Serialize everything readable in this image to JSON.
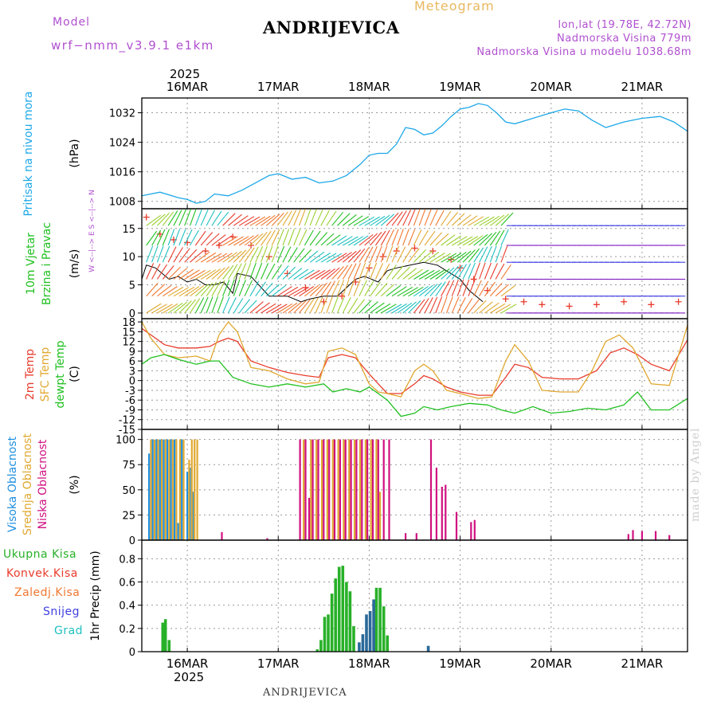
{
  "header": {
    "model_label": "Model",
    "model_name": "wrf−nmm_v3.9.1  e1km",
    "title": "ANDRIJEVICA",
    "meteogram_label": "Meteogram",
    "lonlat": "lon,lat (19.78E, 42.72N)",
    "altitude": "Nadmorska Visina 779m",
    "model_altitude": "Nadmorska Visina u modelu 1038.68m"
  },
  "footer": {
    "station": "ANDRIJEVICA",
    "watermark": "made by Angel"
  },
  "time_axis": {
    "year": "2025",
    "labels": [
      "16MAR",
      "17MAR",
      "18MAR",
      "19MAR",
      "20MAR",
      "21MAR"
    ],
    "start_day": 15.5,
    "end_day": 21.5
  },
  "colors": {
    "pressure": "#1da8e8",
    "temp2m": "#e83c2c",
    "sfc": "#e0a830",
    "dewpt": "#20c020",
    "low_cloud": "#d01080",
    "mid_cloud": "#e0a830",
    "high_cloud": "#2090e0",
    "total_precip": "#28b028",
    "convective": "#e83c2c",
    "frozen": "#f07830",
    "snow": "#4040e0",
    "graupel": "#20c0c0"
  },
  "chart_data": [
    {
      "type": "line",
      "name": "pressure",
      "ylabel_rotated": "Pritisak na nivou mora",
      "unit": "(hPa)",
      "yticks": [
        1008,
        1016,
        1024,
        1032
      ],
      "ylim": [
        1006,
        1036
      ],
      "series": [
        {
          "color": "#1da8e8",
          "x": [
            15.5,
            15.7,
            15.9,
            16.0,
            16.1,
            16.2,
            16.3,
            16.45,
            16.6,
            16.75,
            16.9,
            17.0,
            17.15,
            17.3,
            17.45,
            17.6,
            17.75,
            17.9,
            18.0,
            18.1,
            18.2,
            18.3,
            18.4,
            18.5,
            18.6,
            18.7,
            18.8,
            18.9,
            19.0,
            19.1,
            19.2,
            19.3,
            19.4,
            19.5,
            19.6,
            19.8,
            20.0,
            20.15,
            20.3,
            20.45,
            20.6,
            20.8,
            21.0,
            21.2,
            21.35,
            21.5
          ],
          "y": [
            1009.5,
            1010.5,
            1009,
            1008.5,
            1007.5,
            1008,
            1010,
            1009.5,
            1011,
            1013,
            1015,
            1015.5,
            1014,
            1014.5,
            1013,
            1013.5,
            1015,
            1018,
            1020.5,
            1021,
            1021,
            1023.5,
            1028,
            1027.5,
            1026,
            1026.5,
            1028.5,
            1031,
            1033,
            1033.5,
            1034.5,
            1034,
            1032,
            1029.5,
            1029,
            1030.5,
            1032,
            1033,
            1032.5,
            1030,
            1028,
            1029.5,
            1030.5,
            1031,
            1029.5,
            1027
          ]
        }
      ]
    },
    {
      "type": "line",
      "name": "wind",
      "ylabel_rotated": [
        "10m Vjetar",
        "Brzina i Pravac"
      ],
      "unit": "(m/s)",
      "compass_label": "W <--|--> E   S <--|--> N",
      "yticks": [
        0,
        5,
        10,
        15
      ],
      "ylim": [
        -1,
        18.5
      ],
      "series": [
        {
          "name": "speed",
          "color": "#000000",
          "x": [
            15.5,
            15.55,
            15.65,
            15.8,
            15.9,
            16.0,
            16.1,
            16.2,
            16.3,
            16.4,
            16.5,
            16.55,
            16.7,
            16.9,
            17.1,
            17.25,
            17.35,
            17.5,
            17.65,
            17.75,
            17.85,
            17.95,
            18.1,
            18.2,
            18.3,
            18.45,
            18.6,
            18.75,
            18.9,
            19.0,
            19.1,
            19.25
          ],
          "y": [
            6,
            8.5,
            8,
            6,
            6.5,
            5.5,
            6,
            5,
            5,
            5.5,
            3.5,
            7,
            6.5,
            3,
            3,
            2,
            2.5,
            3,
            3,
            4.5,
            6,
            6.5,
            5.5,
            7.5,
            8,
            8.5,
            9,
            8.5,
            7,
            6,
            4,
            2
          ]
        },
        {
          "name": "gust",
          "color": "#e83c2c",
          "x": [
            15.55,
            15.7,
            15.85,
            16.0,
            16.2,
            16.35,
            16.5,
            16.7,
            16.9,
            17.1,
            17.3,
            17.5,
            17.7,
            17.85,
            18.0,
            18.15,
            18.3,
            18.5,
            18.7,
            18.9,
            19.0,
            19.15,
            19.3,
            19.5,
            19.7,
            19.9,
            20.2,
            20.5,
            20.8,
            21.1,
            21.4
          ],
          "y": [
            17,
            14,
            13,
            12.5,
            11,
            12,
            13.5,
            12,
            10,
            7,
            4.5,
            2,
            3,
            5.5,
            8,
            10,
            11,
            11.5,
            11,
            9.5,
            8,
            6,
            4,
            2.5,
            2,
            1.5,
            1.2,
            1.5,
            2,
            1.5,
            2
          ]
        }
      ]
    },
    {
      "type": "line",
      "name": "temperature",
      "ylabel_rotated": [
        "2m Temp",
        "SFC Temp",
        "dewpt Temp"
      ],
      "unit": "(C)",
      "yticks": [
        -15,
        -12,
        -9,
        -6,
        -3,
        0,
        3,
        6,
        9,
        12,
        15,
        18
      ],
      "ylim": [
        -15,
        19
      ],
      "series": [
        {
          "name": "2m Temp",
          "color": "#e83c2c",
          "x": [
            15.5,
            15.6,
            15.75,
            15.9,
            16.1,
            16.25,
            16.35,
            16.45,
            16.55,
            16.7,
            16.9,
            17.1,
            17.3,
            17.45,
            17.55,
            17.7,
            17.85,
            18.0,
            18.1,
            18.2,
            18.35,
            18.5,
            18.6,
            18.7,
            18.85,
            19.0,
            19.2,
            19.35,
            19.5,
            19.6,
            19.75,
            19.9,
            20.1,
            20.3,
            20.5,
            20.65,
            20.8,
            20.95,
            21.1,
            21.3,
            21.5
          ],
          "y": [
            16,
            14,
            11,
            10,
            10,
            10.5,
            12,
            13,
            12,
            6,
            4,
            2.5,
            1.5,
            1,
            7,
            8,
            7,
            2,
            -1,
            -4,
            -4,
            -1,
            1.5,
            0.5,
            -2,
            -3.5,
            -4.5,
            -4.5,
            1,
            5,
            4,
            1,
            0.5,
            0.5,
            3,
            8.5,
            10,
            8,
            5,
            3,
            12.5
          ]
        },
        {
          "name": "SFC Temp",
          "color": "#e0a830",
          "x": [
            15.5,
            15.6,
            15.75,
            15.9,
            16.1,
            16.25,
            16.35,
            16.45,
            16.55,
            16.7,
            16.9,
            17.1,
            17.3,
            17.45,
            17.55,
            17.7,
            17.85,
            18.0,
            18.1,
            18.2,
            18.35,
            18.5,
            18.6,
            18.7,
            18.85,
            19.0,
            19.2,
            19.35,
            19.5,
            19.6,
            19.75,
            19.9,
            20.1,
            20.3,
            20.45,
            20.6,
            20.75,
            20.9,
            21.1,
            21.3,
            21.5
          ],
          "y": [
            18,
            13,
            8,
            7,
            7.5,
            6,
            14,
            18,
            15,
            4,
            3,
            0.5,
            -1,
            -0.5,
            9,
            10,
            8,
            -1,
            -3.5,
            -4,
            -5,
            3,
            5,
            3,
            -3,
            -4,
            -5.5,
            -5,
            6,
            11,
            6,
            -3,
            -3.5,
            -3.5,
            3,
            12,
            14,
            10,
            -1,
            -1.5,
            17
          ]
        },
        {
          "name": "dewpt Temp",
          "color": "#20c020",
          "x": [
            15.5,
            15.6,
            15.75,
            15.9,
            16.1,
            16.25,
            16.35,
            16.5,
            16.7,
            16.9,
            17.1,
            17.3,
            17.5,
            17.6,
            17.75,
            17.9,
            18.0,
            18.2,
            18.35,
            18.5,
            18.6,
            18.75,
            18.9,
            19.1,
            19.3,
            19.45,
            19.6,
            19.8,
            20.0,
            20.2,
            20.4,
            20.6,
            20.8,
            20.95,
            21.1,
            21.3,
            21.5
          ],
          "y": [
            5,
            7,
            8,
            6.5,
            5,
            6,
            6,
            1,
            -1,
            -2,
            -1,
            -2,
            -1,
            -3.5,
            -2.5,
            -3.5,
            -2,
            -6,
            -11,
            -10,
            -8,
            -9,
            -8,
            -7,
            -7.5,
            -9,
            -10,
            -8,
            -10,
            -9.5,
            -8.5,
            -9,
            -7.5,
            -3.5,
            -9,
            -9,
            -5.5
          ]
        }
      ]
    },
    {
      "type": "bar",
      "name": "clouds",
      "ylabel_rotated": [
        "Visoka Oblacnost",
        "Srednja Oblacnost",
        "Niska Oblacnost"
      ],
      "unit": "(%)",
      "yticks": [
        0,
        25,
        50,
        75,
        100
      ],
      "ylim": [
        0,
        110
      ],
      "series": [
        {
          "name": "Visoka Oblacnost",
          "color": "#2090e0",
          "x": [
            15.58,
            15.62,
            15.66,
            15.7,
            15.74,
            15.78,
            15.82,
            15.86,
            15.9,
            15.94,
            16.0,
            16.03,
            16.06,
            16.09
          ],
          "y": [
            86,
            100,
            100,
            100,
            100,
            100,
            100,
            100,
            17,
            100,
            68,
            72,
            48,
            0
          ]
        },
        {
          "name": "Srednja Oblacnost",
          "color": "#e0a830",
          "x": [
            15.6,
            15.64,
            15.68,
            15.72,
            15.76,
            15.8,
            15.84,
            15.88,
            15.92,
            15.96,
            16.02,
            16.05,
            16.08,
            16.11,
            17.28,
            17.36,
            17.42,
            17.48,
            17.54,
            17.6,
            17.66,
            17.72,
            17.78,
            17.84,
            17.9,
            17.96,
            18.02,
            18.08,
            18.12
          ],
          "y": [
            100,
            100,
            100,
            100,
            100,
            100,
            100,
            100,
            100,
            100,
            80,
            100,
            100,
            100,
            100,
            100,
            100,
            100,
            100,
            100,
            100,
            100,
            100,
            100,
            100,
            100,
            100,
            100,
            48
          ]
        },
        {
          "name": "Niska Oblacnost",
          "color": "#d01080",
          "x": [
            16.38,
            16.88,
            17.24,
            17.3,
            17.34,
            17.38,
            17.44,
            17.5,
            17.56,
            17.62,
            17.68,
            17.74,
            17.8,
            17.86,
            17.92,
            17.98,
            18.04,
            18.1,
            18.16,
            18.22,
            18.4,
            18.52,
            18.68,
            18.74,
            18.8,
            18.84,
            18.96,
            19.12,
            19.16,
            20.85,
            20.9,
            21.0,
            21.15,
            21.3
          ],
          "y": [
            8,
            2,
            100,
            100,
            42,
            100,
            100,
            100,
            100,
            100,
            100,
            100,
            100,
            100,
            100,
            100,
            100,
            100,
            100,
            100,
            7,
            7,
            100,
            72,
            53,
            55,
            28,
            18,
            20,
            6,
            10,
            9,
            9,
            5
          ]
        }
      ]
    },
    {
      "type": "bar",
      "name": "precipitation",
      "ylabel_rotated": "1hr Precip (mm)",
      "legend": [
        "Ukupna Kisa",
        "Konvek.Kisa",
        "Zaledj.Kisa",
        "Snijeg",
        "Grad"
      ],
      "yticks": [
        0,
        0.2,
        0.4,
        0.6,
        0.8
      ],
      "ylim": [
        0,
        0.96
      ],
      "series": [
        {
          "name": "Ukupna Kisa",
          "color": "#28b028",
          "x": [
            15.73,
            15.76,
            15.8,
            17.43,
            17.47,
            17.51,
            17.55,
            17.59,
            17.63,
            17.67,
            17.71,
            17.75,
            17.79,
            17.83,
            17.87,
            18.08,
            18.12,
            18.16,
            18.2
          ],
          "y": [
            0.25,
            0.28,
            0.1,
            0.02,
            0.1,
            0.3,
            0.32,
            0.5,
            0.63,
            0.73,
            0.74,
            0.6,
            0.52,
            0.22,
            0.0,
            0.55,
            0.55,
            0.39,
            0.14
          ]
        },
        {
          "name": "Snijeg",
          "color": "#2a6a9a",
          "x": [
            17.89,
            17.93,
            17.97,
            18.01,
            18.05,
            18.65
          ],
          "y": [
            0.08,
            0.15,
            0.32,
            0.35,
            0.45,
            0.05
          ]
        }
      ]
    }
  ]
}
